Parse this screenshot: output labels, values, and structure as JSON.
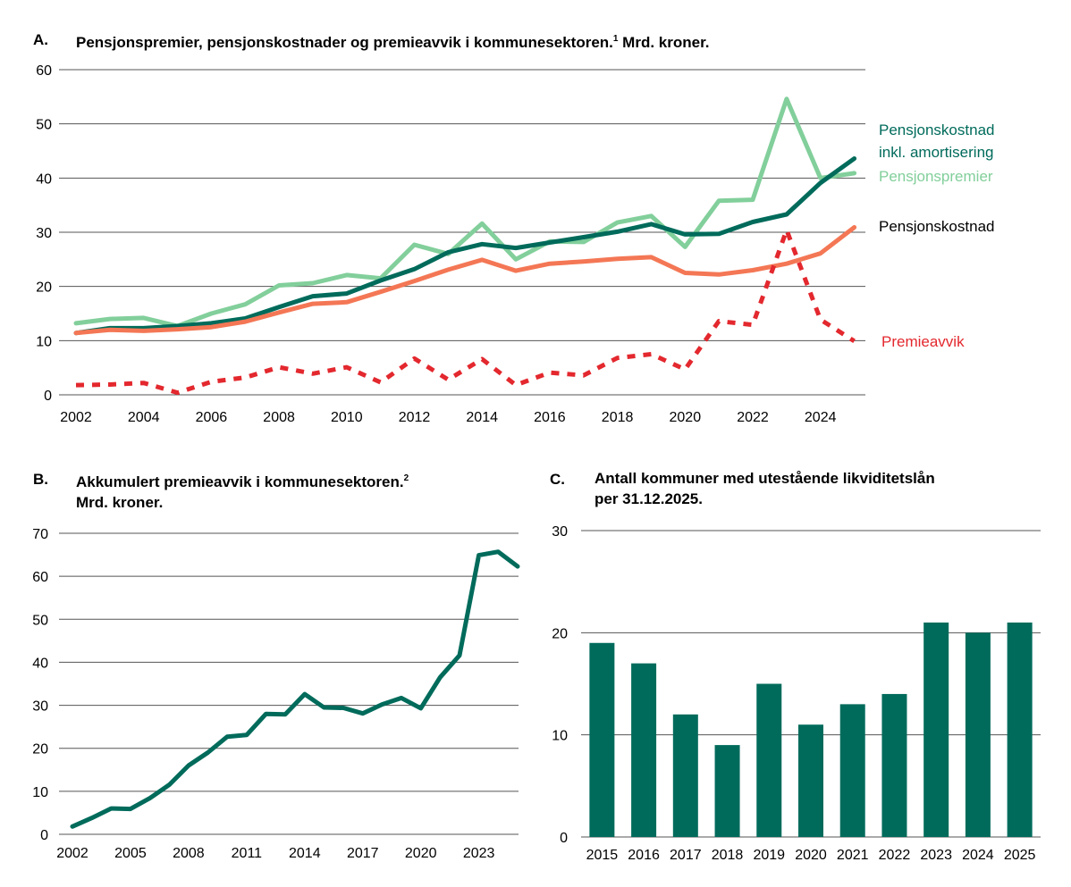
{
  "colors": {
    "dark_green": "#006b5b",
    "light_green": "#82cf9b",
    "orange": "#f47755",
    "red": "#e3282e",
    "grid": "#555555"
  },
  "panel_a": {
    "letter": "A.",
    "title": "Pensjonspremier, pensjonskostnader og premieavvik i kommunesektoren.",
    "footnote": "1",
    "title_suffix": " Mrd. kroner."
  },
  "panel_b": {
    "letter": "B.",
    "title_line1": "Akkumulert premieavvik i kommunesektoren.",
    "footnote": "2",
    "title_line2": "Mrd. kroner."
  },
  "panel_c": {
    "letter": "C.",
    "title_line1": "Antall kommuner med utestående likviditetslån",
    "title_line2": "per 31.12.2025."
  },
  "chart_data": [
    {
      "type": "line",
      "ylim": [
        0,
        60
      ],
      "yticks": [
        0,
        10,
        20,
        30,
        40,
        50,
        60
      ],
      "xticks": [
        2002,
        2004,
        2006,
        2008,
        2010,
        2012,
        2014,
        2016,
        2018,
        2020,
        2022,
        2024
      ],
      "x": [
        2002,
        2003,
        2004,
        2005,
        2006,
        2007,
        2008,
        2009,
        2010,
        2011,
        2012,
        2013,
        2014,
        2015,
        2016,
        2017,
        2018,
        2019,
        2020,
        2021,
        2022,
        2023,
        2024,
        2025
      ],
      "series": [
        {
          "name": "Pensjonspremier",
          "color": "#82cf9b",
          "dashed": false,
          "values": [
            13.2,
            14.0,
            14.2,
            12.7,
            15.0,
            16.7,
            20.2,
            20.6,
            22.1,
            21.5,
            27.7,
            26.0,
            31.6,
            25.0,
            28.3,
            28.2,
            31.8,
            33.0,
            27.3,
            35.8,
            36.0,
            54.6,
            40.0,
            40.9
          ]
        },
        {
          "name": "Pensjonskostnad inkl. amortisering",
          "color": "#006b5b",
          "dashed": false,
          "values": [
            11.4,
            12.3,
            12.3,
            12.7,
            13.2,
            14.1,
            16.2,
            18.2,
            18.7,
            21.1,
            23.2,
            26.3,
            27.8,
            27.1,
            28.1,
            29.1,
            30.1,
            31.5,
            29.6,
            29.7,
            31.9,
            33.3,
            39.1,
            43.6
          ]
        },
        {
          "name": "Pensjonskostnad",
          "color": "#f47755",
          "dashed": false,
          "values": [
            11.4,
            12.0,
            11.8,
            12.1,
            12.5,
            13.5,
            15.2,
            16.8,
            17.1,
            19.0,
            21.0,
            23.1,
            24.9,
            22.9,
            24.2,
            24.6,
            25.1,
            25.4,
            22.5,
            22.2,
            23.0,
            24.2,
            26.1,
            30.9
          ]
        },
        {
          "name": "Premieavvik",
          "color": "#e3282e",
          "dashed": true,
          "values": [
            1.8,
            1.9,
            2.2,
            0.4,
            2.4,
            3.2,
            5.1,
            3.9,
            5.1,
            2.3,
            6.7,
            2.8,
            6.6,
            1.8,
            4.1,
            3.6,
            6.8,
            7.5,
            4.7,
            13.6,
            12.9,
            30.4,
            13.9,
            9.9
          ]
        }
      ],
      "legend_labels": {
        "pk_amort_line1": "Pensjonskostnad",
        "pk_amort_line2": "inkl. amortisering",
        "premier": "Pensjonspremier",
        "pk": "Pensjonskostnad",
        "avvik": "Premieavvik"
      }
    },
    {
      "type": "line",
      "ylim": [
        0,
        70
      ],
      "yticks": [
        0,
        10,
        20,
        30,
        40,
        50,
        60,
        70
      ],
      "xticks": [
        2002,
        2005,
        2008,
        2011,
        2014,
        2017,
        2020,
        2023
      ],
      "x": [
        2002,
        2003,
        2004,
        2005,
        2006,
        2007,
        2008,
        2009,
        2010,
        2011,
        2012,
        2013,
        2014,
        2015,
        2016,
        2017,
        2018,
        2019,
        2020,
        2021,
        2022,
        2023,
        2024,
        2025
      ],
      "series": [
        {
          "color": "#006b5b",
          "values": [
            1.8,
            3.8,
            6.0,
            5.9,
            8.4,
            11.5,
            16.0,
            19.0,
            22.7,
            23.1,
            28.0,
            27.9,
            32.6,
            29.5,
            29.4,
            28.1,
            30.2,
            31.7,
            29.3,
            36.5,
            41.6,
            64.9,
            65.7,
            62.3
          ]
        }
      ]
    },
    {
      "type": "bar",
      "ylim": [
        0,
        30
      ],
      "yticks": [
        0,
        10,
        20,
        30
      ],
      "categories": [
        "2015",
        "2016",
        "2017",
        "2018",
        "2019",
        "2020",
        "2021",
        "2022",
        "2023",
        "2024",
        "2025"
      ],
      "values": [
        19,
        17,
        12,
        9,
        15,
        11,
        13,
        14,
        21,
        20,
        21
      ],
      "color": "#006b5b"
    }
  ]
}
